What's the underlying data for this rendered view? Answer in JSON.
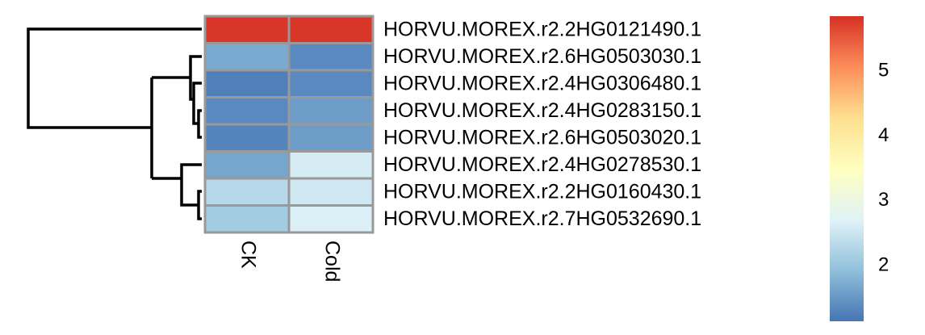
{
  "chart_data": {
    "type": "heatmap",
    "rows": [
      "HORVU.MOREX.r2.2HG0121490.1",
      "HORVU.MOREX.r2.6HG0503030.1",
      "HORVU.MOREX.r2.4HG0306480.1",
      "HORVU.MOREX.r2.4HG0283150.1",
      "HORVU.MOREX.r2.6HG0503020.1",
      "HORVU.MOREX.r2.4HG0278530.1",
      "HORVU.MOREX.r2.2HG0160430.1",
      "HORVU.MOREX.r2.7HG0532690.1"
    ],
    "columns": [
      "CK",
      "Cold"
    ],
    "values": [
      [
        5.8,
        5.8
      ],
      [
        1.7,
        1.35
      ],
      [
        1.25,
        1.35
      ],
      [
        1.35,
        1.55
      ],
      [
        1.3,
        1.55
      ],
      [
        1.65,
        2.6
      ],
      [
        2.3,
        2.55
      ],
      [
        2.1,
        2.65
      ]
    ],
    "colorscale": [
      "#4575B4",
      "#91BFDB",
      "#E0F3F8",
      "#FFFFBF",
      "#FEE090",
      "#FC8D59",
      "#D73027"
    ],
    "zlim": [
      1.14,
      5.85
    ],
    "zticks": [
      2,
      3,
      4,
      5
    ]
  }
}
